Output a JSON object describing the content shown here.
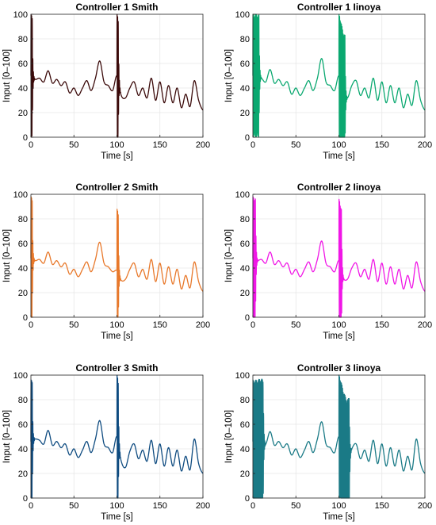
{
  "chart_data": [
    {
      "type": "line",
      "title": "Controller 1 Smith",
      "xlabel": "Time [s]",
      "ylabel": "Input [0–100]",
      "xlim": [
        0,
        200
      ],
      "ylim": [
        0,
        100
      ],
      "xticks": [
        0,
        50,
        100,
        150,
        200
      ],
      "yticks": [
        0,
        20,
        40,
        60,
        80,
        100
      ],
      "grid": true,
      "color": "#3b0a0a",
      "transient": "light",
      "series_points": {
        "x": [
          0,
          5,
          10,
          15,
          20,
          25,
          30,
          35,
          40,
          45,
          50,
          55,
          60,
          65,
          70,
          75,
          80,
          85,
          90,
          95,
          100,
          105,
          110,
          115,
          120,
          125,
          130,
          135,
          140,
          145,
          150,
          155,
          160,
          165,
          170,
          175,
          180,
          185,
          190,
          195,
          200
        ],
        "y": [
          50,
          47,
          48,
          45,
          54,
          44,
          47,
          42,
          45,
          36,
          40,
          34,
          40,
          46,
          38,
          48,
          62,
          45,
          42,
          38,
          50,
          34,
          32,
          40,
          45,
          34,
          40,
          32,
          48,
          30,
          45,
          28,
          42,
          28,
          40,
          24,
          35,
          25,
          46,
          30,
          22
        ]
      }
    },
    {
      "type": "line",
      "title": "Controller 1 Iinoya",
      "xlabel": "Time [s]",
      "ylabel": "Input [0–100]",
      "xlim": [
        0,
        200
      ],
      "ylim": [
        0,
        100
      ],
      "xticks": [
        0,
        50,
        100,
        150,
        200
      ],
      "yticks": [
        0,
        20,
        40,
        60,
        80,
        100
      ],
      "grid": true,
      "color": "#0aa870",
      "transient": "heavy",
      "series_points": {
        "x": [
          0,
          5,
          10,
          15,
          20,
          25,
          30,
          35,
          40,
          45,
          50,
          55,
          60,
          65,
          70,
          75,
          80,
          85,
          90,
          95,
          100,
          105,
          110,
          115,
          120,
          125,
          130,
          135,
          140,
          145,
          150,
          155,
          160,
          165,
          170,
          175,
          180,
          185,
          190,
          195,
          200
        ],
        "y": [
          50,
          50,
          48,
          45,
          55,
          44,
          47,
          42,
          45,
          35,
          40,
          34,
          40,
          46,
          38,
          48,
          64,
          45,
          42,
          38,
          50,
          36,
          32,
          42,
          46,
          34,
          40,
          32,
          48,
          30,
          45,
          28,
          42,
          28,
          40,
          24,
          35,
          26,
          46,
          30,
          22
        ]
      }
    },
    {
      "type": "line",
      "title": "Controller 2 Smith",
      "xlabel": "Time [s]",
      "ylabel": "Input [0–100]",
      "xlim": [
        0,
        200
      ],
      "ylim": [
        0,
        100
      ],
      "xticks": [
        0,
        50,
        100,
        150,
        200
      ],
      "yticks": [
        0,
        20,
        40,
        60,
        80,
        100
      ],
      "grid": true,
      "color": "#e8782a",
      "transient": "light",
      "series_points": {
        "x": [
          0,
          5,
          10,
          15,
          20,
          25,
          30,
          35,
          40,
          45,
          50,
          55,
          60,
          65,
          70,
          75,
          80,
          85,
          90,
          95,
          100,
          105,
          110,
          115,
          120,
          125,
          130,
          135,
          140,
          145,
          150,
          155,
          160,
          165,
          170,
          175,
          180,
          185,
          190,
          195,
          200
        ],
        "y": [
          48,
          46,
          47,
          44,
          53,
          43,
          46,
          41,
          44,
          35,
          39,
          33,
          39,
          45,
          37,
          47,
          61,
          44,
          41,
          37,
          38,
          30,
          31,
          39,
          44,
          33,
          39,
          31,
          47,
          29,
          44,
          27,
          41,
          27,
          39,
          23,
          34,
          24,
          45,
          29,
          21
        ]
      }
    },
    {
      "type": "line",
      "title": "Controller 2 Iinoya",
      "xlabel": "Time [s]",
      "ylabel": "Input [0–100]",
      "xlim": [
        0,
        200
      ],
      "ylim": [
        0,
        100
      ],
      "xticks": [
        0,
        50,
        100,
        150,
        200
      ],
      "yticks": [
        0,
        20,
        40,
        60,
        80,
        100
      ],
      "grid": true,
      "color": "#f016e6",
      "transient": "medium",
      "series_points": {
        "x": [
          0,
          5,
          10,
          15,
          20,
          25,
          30,
          35,
          40,
          45,
          50,
          55,
          60,
          65,
          70,
          75,
          80,
          85,
          90,
          95,
          100,
          105,
          110,
          115,
          120,
          125,
          130,
          135,
          140,
          145,
          150,
          155,
          160,
          165,
          170,
          175,
          180,
          185,
          190,
          195,
          200
        ],
        "y": [
          48,
          46,
          47,
          44,
          53,
          43,
          46,
          41,
          44,
          35,
          39,
          33,
          39,
          45,
          37,
          47,
          62,
          44,
          41,
          37,
          46,
          32,
          31,
          40,
          44,
          33,
          39,
          31,
          47,
          29,
          44,
          27,
          41,
          27,
          39,
          23,
          34,
          24,
          45,
          29,
          21
        ]
      }
    },
    {
      "type": "line",
      "title": "Controller 3 Smith",
      "xlabel": "Time [s]",
      "ylabel": "Input [0–100]",
      "xlim": [
        0,
        200
      ],
      "ylim": [
        0,
        100
      ],
      "xticks": [
        0,
        50,
        100,
        150,
        200
      ],
      "yticks": [
        0,
        20,
        40,
        60,
        80,
        100
      ],
      "grid": true,
      "color": "#0e4b80",
      "transient": "light",
      "series_points": {
        "x": [
          0,
          5,
          10,
          15,
          20,
          25,
          30,
          35,
          40,
          45,
          50,
          55,
          60,
          65,
          70,
          75,
          80,
          85,
          90,
          95,
          100,
          105,
          110,
          115,
          120,
          125,
          130,
          135,
          140,
          145,
          150,
          155,
          160,
          165,
          170,
          175,
          180,
          185,
          190,
          195,
          200
        ],
        "y": [
          46,
          48,
          47,
          44,
          55,
          43,
          46,
          41,
          44,
          35,
          40,
          33,
          39,
          46,
          37,
          48,
          63,
          44,
          41,
          37,
          50,
          30,
          25,
          38,
          44,
          32,
          39,
          30,
          47,
          28,
          44,
          26,
          41,
          26,
          39,
          22,
          34,
          23,
          48,
          28,
          20
        ]
      }
    },
    {
      "type": "line",
      "title": "Controller 3 Iinoya",
      "xlabel": "Time [s]",
      "ylabel": "Input [0–100]",
      "xlim": [
        0,
        200
      ],
      "ylim": [
        0,
        100
      ],
      "xticks": [
        0,
        50,
        100,
        150,
        200
      ],
      "yticks": [
        0,
        20,
        40,
        60,
        80,
        100
      ],
      "grid": true,
      "color": "#1a7a86",
      "transient": "block",
      "series_points": {
        "x": [
          0,
          5,
          10,
          15,
          20,
          25,
          30,
          35,
          40,
          45,
          50,
          55,
          60,
          65,
          70,
          75,
          80,
          85,
          90,
          95,
          100,
          105,
          110,
          115,
          120,
          125,
          130,
          135,
          140,
          145,
          150,
          155,
          160,
          165,
          170,
          175,
          180,
          185,
          190,
          195,
          200
        ],
        "y": [
          46,
          46,
          47,
          44,
          54,
          43,
          46,
          41,
          44,
          35,
          40,
          33,
          39,
          46,
          37,
          48,
          62,
          44,
          41,
          37,
          50,
          38,
          30,
          40,
          44,
          32,
          39,
          30,
          47,
          28,
          44,
          26,
          41,
          26,
          39,
          22,
          34,
          23,
          48,
          28,
          20
        ]
      }
    }
  ]
}
